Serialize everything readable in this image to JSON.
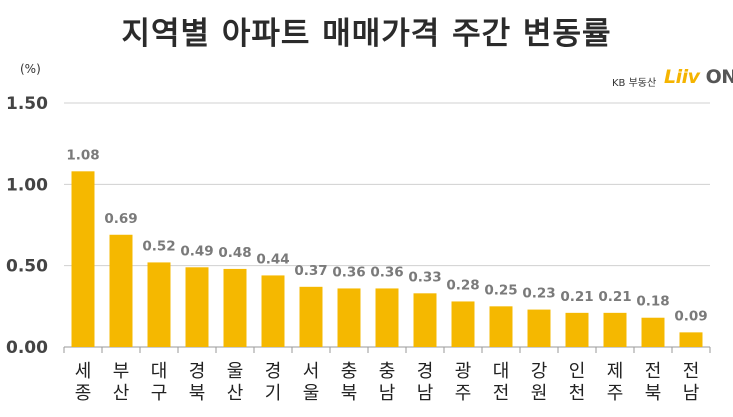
{
  "header": {
    "title": "지역별 아파트 매매가격 주간 변동률",
    "unit": "(%)",
    "logo_prefix": "KB 부동산",
    "logo_brand": "Liiv",
    "logo_suffix": "ON"
  },
  "colors": {
    "bar": "#f5b800",
    "grid": "#d0d0d0",
    "axis": "#9a9a9a"
  },
  "chart_data": {
    "type": "bar",
    "title": "지역별 아파트 매매가격 주간 변동률",
    "ylabel": "(%)",
    "xlabel": "",
    "ylim": [
      0,
      1.5
    ],
    "yticks": [
      "0.00",
      "0.50",
      "1.00",
      "1.50"
    ],
    "grid": true,
    "categories": [
      "세종",
      "부산",
      "대구",
      "경북",
      "울산",
      "경기",
      "서울",
      "충북",
      "충남",
      "경남",
      "광주",
      "대전",
      "강원",
      "인천",
      "제주",
      "전북",
      "전남"
    ],
    "values": [
      1.08,
      0.69,
      0.52,
      0.49,
      0.48,
      0.44,
      0.37,
      0.36,
      0.36,
      0.33,
      0.28,
      0.25,
      0.23,
      0.21,
      0.21,
      0.18,
      0.09
    ],
    "value_labels": [
      "1.08",
      "0.69",
      "0.52",
      "0.49",
      "0.48",
      "0.44",
      "0.37",
      "0.36",
      "0.36",
      "0.33",
      "0.28",
      "0.25",
      "0.23",
      "0.21",
      "0.21",
      "0.18",
      "0.09"
    ]
  }
}
